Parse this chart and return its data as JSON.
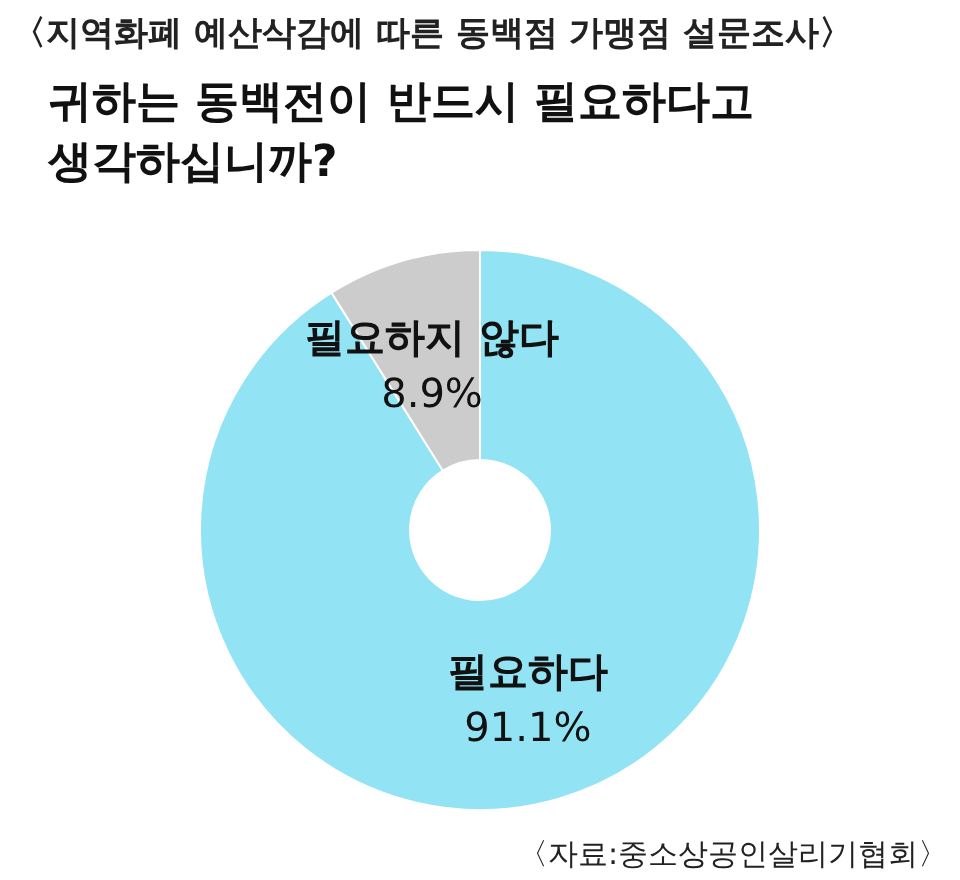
{
  "chart_data": {
    "type": "donut",
    "title": "〈지역화폐 예산삭감에 따른 동백점 가맹점 설문조사〉",
    "subtitle": "귀하는 동백전이 반드시 필요하다고 생각하십니까?",
    "categories": [
      "필요하다",
      "필요하지 않다"
    ],
    "values": [
      91.1,
      8.9
    ],
    "colors": [
      "#92e3f3",
      "#cccccc"
    ],
    "value_labels": [
      "91.1%",
      "8.9%"
    ],
    "annotations": [
      "〈자료:중소상공인살리기협회〉"
    ]
  }
}
